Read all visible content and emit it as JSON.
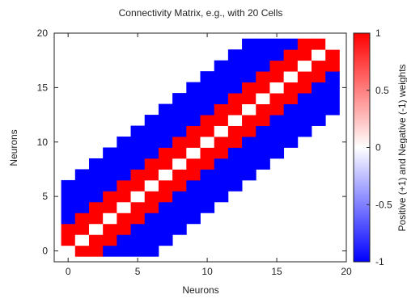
{
  "chart_data": {
    "type": "heatmap",
    "title": "Connectivity Matrix, e.g., with 20 Cells",
    "xlabel": "Neurons",
    "ylabel": "Neurons",
    "colorbar_label": "Positive (+1) and Negative (-1) weights",
    "xlim": [
      -1,
      20
    ],
    "ylim": [
      -1,
      20
    ],
    "x_ticks": [
      0,
      5,
      10,
      15,
      20
    ],
    "y_ticks": [
      0,
      5,
      10,
      15,
      20
    ],
    "colorbar_range": [
      -1,
      1
    ],
    "colorbar_ticks": [
      -1,
      -0.5,
      0,
      0.5,
      1
    ],
    "colors": {
      "negative": "#0000ff",
      "zero": "#ffffff",
      "positive": "#ff0000"
    },
    "grid": false,
    "size": 20,
    "rule": "w(i,j) = 0 if i = j; +1 if |i-j| <= 2; -1 if 3 <= |i-j| <= 6; empty otherwise (truncated at matrix edges)",
    "values": [
      [
        0,
        1,
        1,
        -1,
        -1,
        -1,
        -1,
        null,
        null,
        null,
        null,
        null,
        null,
        null,
        null,
        null,
        null,
        null,
        null,
        null
      ],
      [
        1,
        0,
        1,
        1,
        -1,
        -1,
        -1,
        -1,
        null,
        null,
        null,
        null,
        null,
        null,
        null,
        null,
        null,
        null,
        null,
        null
      ],
      [
        1,
        1,
        0,
        1,
        1,
        -1,
        -1,
        -1,
        -1,
        null,
        null,
        null,
        null,
        null,
        null,
        null,
        null,
        null,
        null,
        null
      ],
      [
        -1,
        1,
        1,
        0,
        1,
        1,
        -1,
        -1,
        -1,
        -1,
        null,
        null,
        null,
        null,
        null,
        null,
        null,
        null,
        null,
        null
      ],
      [
        -1,
        -1,
        1,
        1,
        0,
        1,
        1,
        -1,
        -1,
        -1,
        -1,
        null,
        null,
        null,
        null,
        null,
        null,
        null,
        null,
        null
      ],
      [
        -1,
        -1,
        -1,
        1,
        1,
        0,
        1,
        1,
        -1,
        -1,
        -1,
        -1,
        null,
        null,
        null,
        null,
        null,
        null,
        null,
        null
      ],
      [
        -1,
        -1,
        -1,
        -1,
        1,
        1,
        0,
        1,
        1,
        -1,
        -1,
        -1,
        -1,
        null,
        null,
        null,
        null,
        null,
        null,
        null
      ],
      [
        null,
        -1,
        -1,
        -1,
        -1,
        1,
        1,
        0,
        1,
        1,
        -1,
        -1,
        -1,
        -1,
        null,
        null,
        null,
        null,
        null,
        null
      ],
      [
        null,
        null,
        -1,
        -1,
        -1,
        -1,
        1,
        1,
        0,
        1,
        1,
        -1,
        -1,
        -1,
        -1,
        null,
        null,
        null,
        null,
        null
      ],
      [
        null,
        null,
        null,
        -1,
        -1,
        -1,
        -1,
        1,
        1,
        0,
        1,
        1,
        -1,
        -1,
        -1,
        -1,
        null,
        null,
        null,
        null
      ],
      [
        null,
        null,
        null,
        null,
        -1,
        -1,
        -1,
        -1,
        1,
        1,
        0,
        1,
        1,
        -1,
        -1,
        -1,
        -1,
        null,
        null,
        null
      ],
      [
        null,
        null,
        null,
        null,
        null,
        -1,
        -1,
        -1,
        -1,
        1,
        1,
        0,
        1,
        1,
        -1,
        -1,
        -1,
        -1,
        null,
        null
      ],
      [
        null,
        null,
        null,
        null,
        null,
        null,
        -1,
        -1,
        -1,
        -1,
        1,
        1,
        0,
        1,
        1,
        -1,
        -1,
        -1,
        -1,
        null
      ],
      [
        null,
        null,
        null,
        null,
        null,
        null,
        null,
        -1,
        -1,
        -1,
        -1,
        1,
        1,
        0,
        1,
        1,
        -1,
        -1,
        -1,
        -1
      ],
      [
        null,
        null,
        null,
        null,
        null,
        null,
        null,
        null,
        -1,
        -1,
        -1,
        -1,
        1,
        1,
        0,
        1,
        1,
        -1,
        -1,
        -1
      ],
      [
        null,
        null,
        null,
        null,
        null,
        null,
        null,
        null,
        null,
        -1,
        -1,
        -1,
        -1,
        1,
        1,
        0,
        1,
        1,
        -1,
        -1
      ],
      [
        null,
        null,
        null,
        null,
        null,
        null,
        null,
        null,
        null,
        null,
        -1,
        -1,
        -1,
        -1,
        1,
        1,
        0,
        1,
        1,
        -1
      ],
      [
        null,
        null,
        null,
        null,
        null,
        null,
        null,
        null,
        null,
        null,
        null,
        -1,
        -1,
        -1,
        -1,
        1,
        1,
        0,
        1,
        1
      ],
      [
        null,
        null,
        null,
        null,
        null,
        null,
        null,
        null,
        null,
        null,
        null,
        null,
        -1,
        -1,
        -1,
        -1,
        1,
        1,
        0,
        1
      ],
      [
        null,
        null,
        null,
        null,
        null,
        null,
        null,
        null,
        null,
        null,
        null,
        null,
        null,
        -1,
        -1,
        -1,
        -1,
        1,
        1,
        0
      ]
    ]
  }
}
